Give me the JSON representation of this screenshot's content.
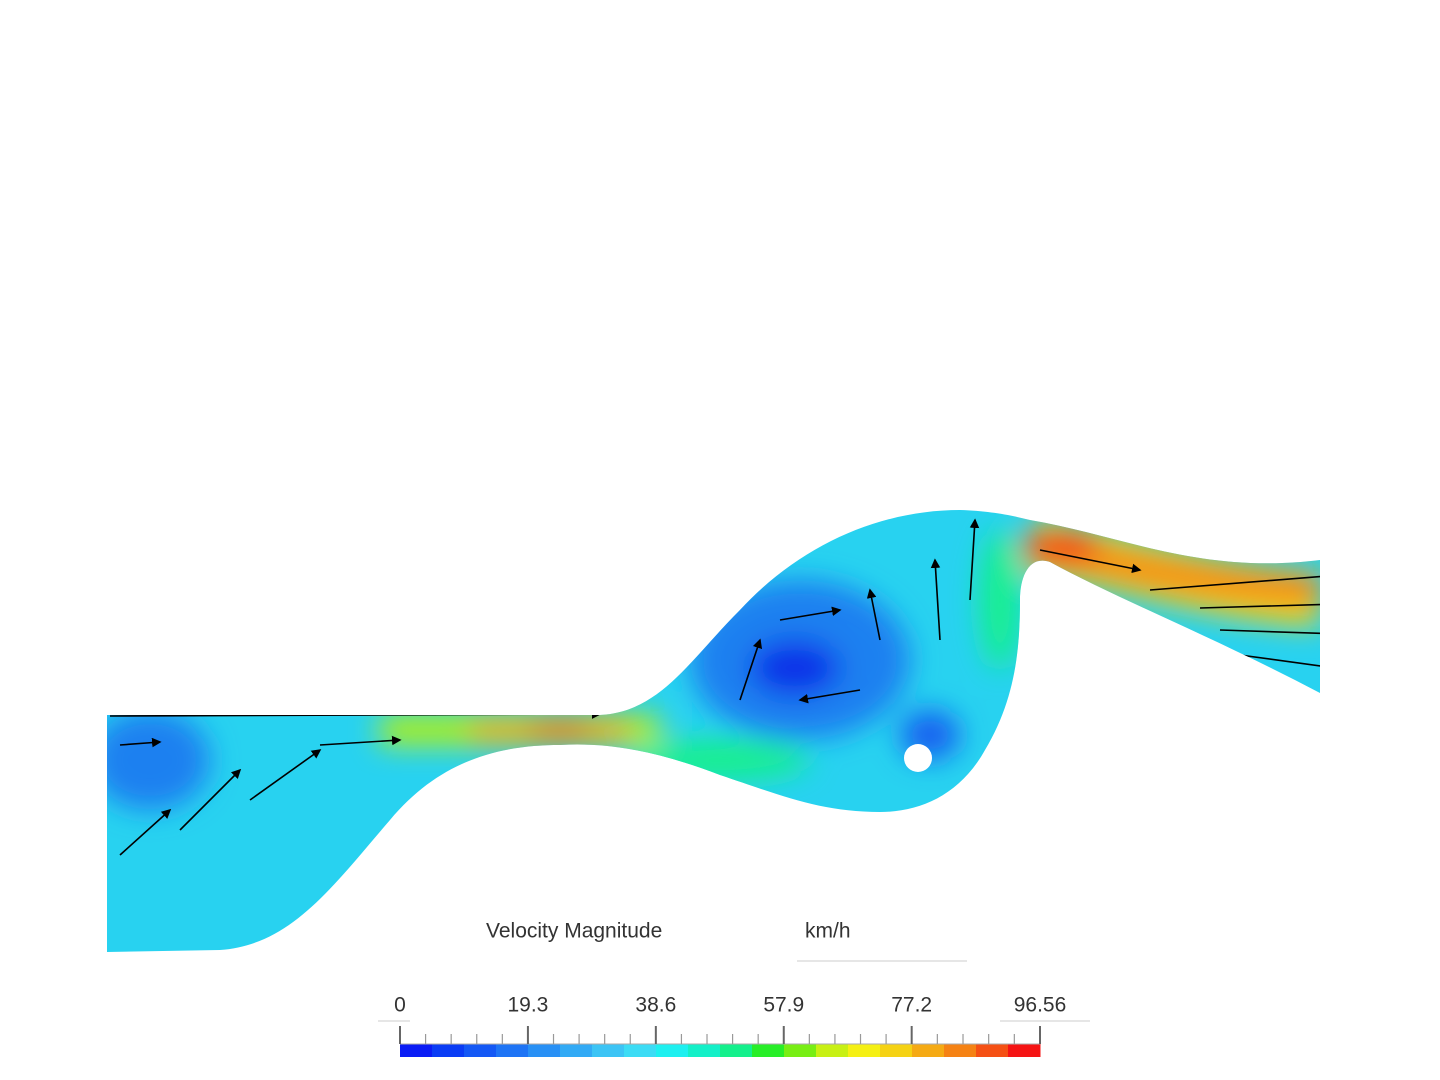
{
  "legend": {
    "title": "Velocity Magnitude",
    "unit": "km/h",
    "range": [
      0,
      96.56
    ],
    "ticks": [
      0,
      19.3,
      38.6,
      57.9,
      77.2,
      96.56
    ],
    "colors": [
      "#0a1cf5",
      "#0a3cf5",
      "#1458f5",
      "#1e74f5",
      "#2890f5",
      "#32aaf5",
      "#3cc4f5",
      "#3cdcf5",
      "#1ef0f0",
      "#14f0c8",
      "#14f08c",
      "#28ee28",
      "#78ee14",
      "#c8f014",
      "#f5f014",
      "#f5d214",
      "#f5aa14",
      "#f58214",
      "#f55014",
      "#f51414"
    ]
  }
}
